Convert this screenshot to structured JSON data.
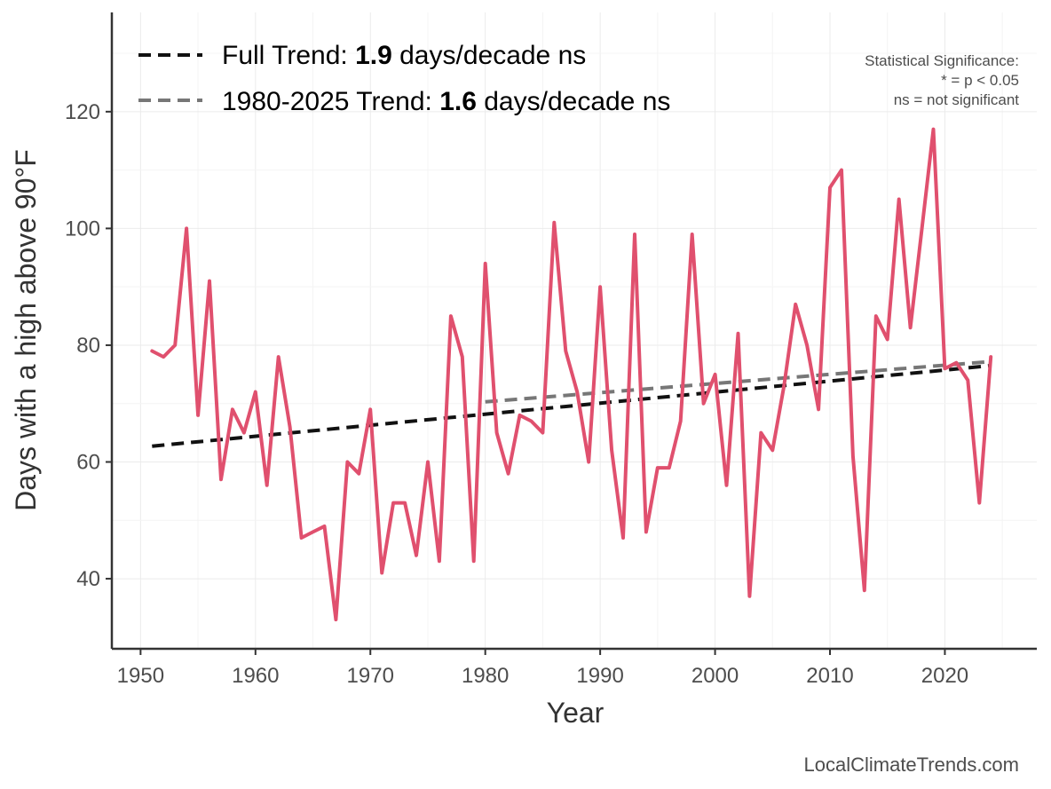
{
  "chart_data": {
    "type": "line",
    "xlabel": "Year",
    "ylabel": "Days with a high above 90°F",
    "xlim": [
      1947.5,
      2028
    ],
    "ylim": [
      28,
      137
    ],
    "x_ticks": [
      1950,
      1960,
      1970,
      1980,
      1990,
      2000,
      2010,
      2020
    ],
    "y_ticks": [
      40,
      60,
      80,
      100,
      120
    ],
    "grid": true,
    "series": [
      {
        "name": "Days above 90°F",
        "color": "#e0506e",
        "x": [
          1951,
          1952,
          1953,
          1954,
          1955,
          1956,
          1957,
          1958,
          1959,
          1960,
          1961,
          1962,
          1963,
          1964,
          1965,
          1966,
          1967,
          1968,
          1969,
          1970,
          1971,
          1972,
          1973,
          1974,
          1975,
          1976,
          1977,
          1978,
          1979,
          1980,
          1981,
          1982,
          1983,
          1984,
          1985,
          1986,
          1987,
          1988,
          1989,
          1990,
          1991,
          1992,
          1993,
          1994,
          1995,
          1996,
          1997,
          1998,
          1999,
          2000,
          2001,
          2002,
          2003,
          2004,
          2005,
          2006,
          2007,
          2008,
          2009,
          2010,
          2011,
          2012,
          2013,
          2014,
          2015,
          2016,
          2017,
          2018,
          2019,
          2020,
          2021,
          2022,
          2023,
          2024
        ],
        "values": [
          79,
          78,
          80,
          100,
          68,
          91,
          57,
          69,
          65,
          72,
          56,
          78,
          66,
          47,
          48,
          49,
          33,
          60,
          58,
          69,
          41,
          53,
          53,
          44,
          60,
          43,
          85,
          78,
          43,
          94,
          65,
          58,
          68,
          67,
          65,
          101,
          79,
          72,
          60,
          90,
          62,
          47,
          99,
          48,
          59,
          59,
          67,
          99,
          70,
          75,
          56,
          82,
          37,
          65,
          62,
          73,
          87,
          80,
          69,
          107,
          110,
          61,
          38,
          85,
          81,
          105,
          83,
          100,
          117,
          76,
          77,
          74,
          53,
          78
        ]
      }
    ],
    "trend_lines": [
      {
        "name": "Full Trend",
        "color": "#111111",
        "x": [
          1951,
          2024
        ],
        "y": [
          62.7,
          76.5
        ]
      },
      {
        "name": "1980-2025 Trend",
        "color": "#777777",
        "x": [
          1980,
          2024
        ],
        "y": [
          70.3,
          77.2
        ]
      }
    ],
    "legend": [
      {
        "prefix": "Full Trend: ",
        "value": "1.9",
        "suffix": " days/decade ns",
        "color": "#111111"
      },
      {
        "prefix": "1980-2025 Trend: ",
        "value": "1.6",
        "suffix": " days/decade ns",
        "color": "#777777"
      }
    ],
    "significance_note": {
      "line1": "Statistical Significance:",
      "line2": "* = p < 0.05",
      "line3": "ns = not significant"
    },
    "source": "LocalClimateTrends.com"
  }
}
